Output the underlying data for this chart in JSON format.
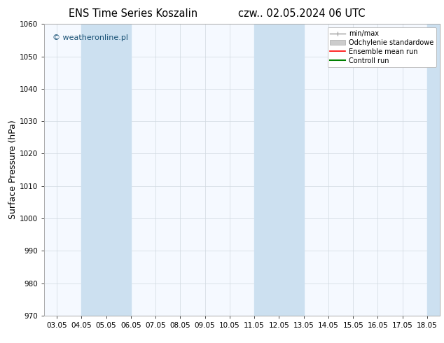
{
  "title_left": "ENS Time Series Koszalin",
  "title_right": "czw.. 02.05.2024 06 UTC",
  "ylabel": "Surface Pressure (hPa)",
  "ylim": [
    970,
    1060
  ],
  "yticks": [
    970,
    980,
    990,
    1000,
    1010,
    1020,
    1030,
    1040,
    1050,
    1060
  ],
  "x_labels": [
    "03.05",
    "04.05",
    "05.05",
    "06.05",
    "07.05",
    "08.05",
    "09.05",
    "10.05",
    "11.05",
    "12.05",
    "13.05",
    "14.05",
    "15.05",
    "16.05",
    "17.05",
    "18.05"
  ],
  "x_positions": [
    0,
    1,
    2,
    3,
    4,
    5,
    6,
    7,
    8,
    9,
    10,
    11,
    12,
    13,
    14,
    15
  ],
  "shaded_bands": [
    {
      "xmin": 1.0,
      "xmax": 3.0
    },
    {
      "xmin": 8.0,
      "xmax": 9.0
    },
    {
      "xmin": 9.0,
      "xmax": 10.0
    },
    {
      "xmin": 15.0,
      "xmax": 15.5
    }
  ],
  "shade_color": "#cce0f0",
  "background_color": "#ffffff",
  "plot_bg_color": "#f5f9ff",
  "watermark": "© weatheronline.pl",
  "watermark_color": "#1a5276",
  "grid_color": "#d0d8e0",
  "tick_label_fontsize": 7.5,
  "axis_label_fontsize": 9,
  "title_fontsize": 10.5
}
